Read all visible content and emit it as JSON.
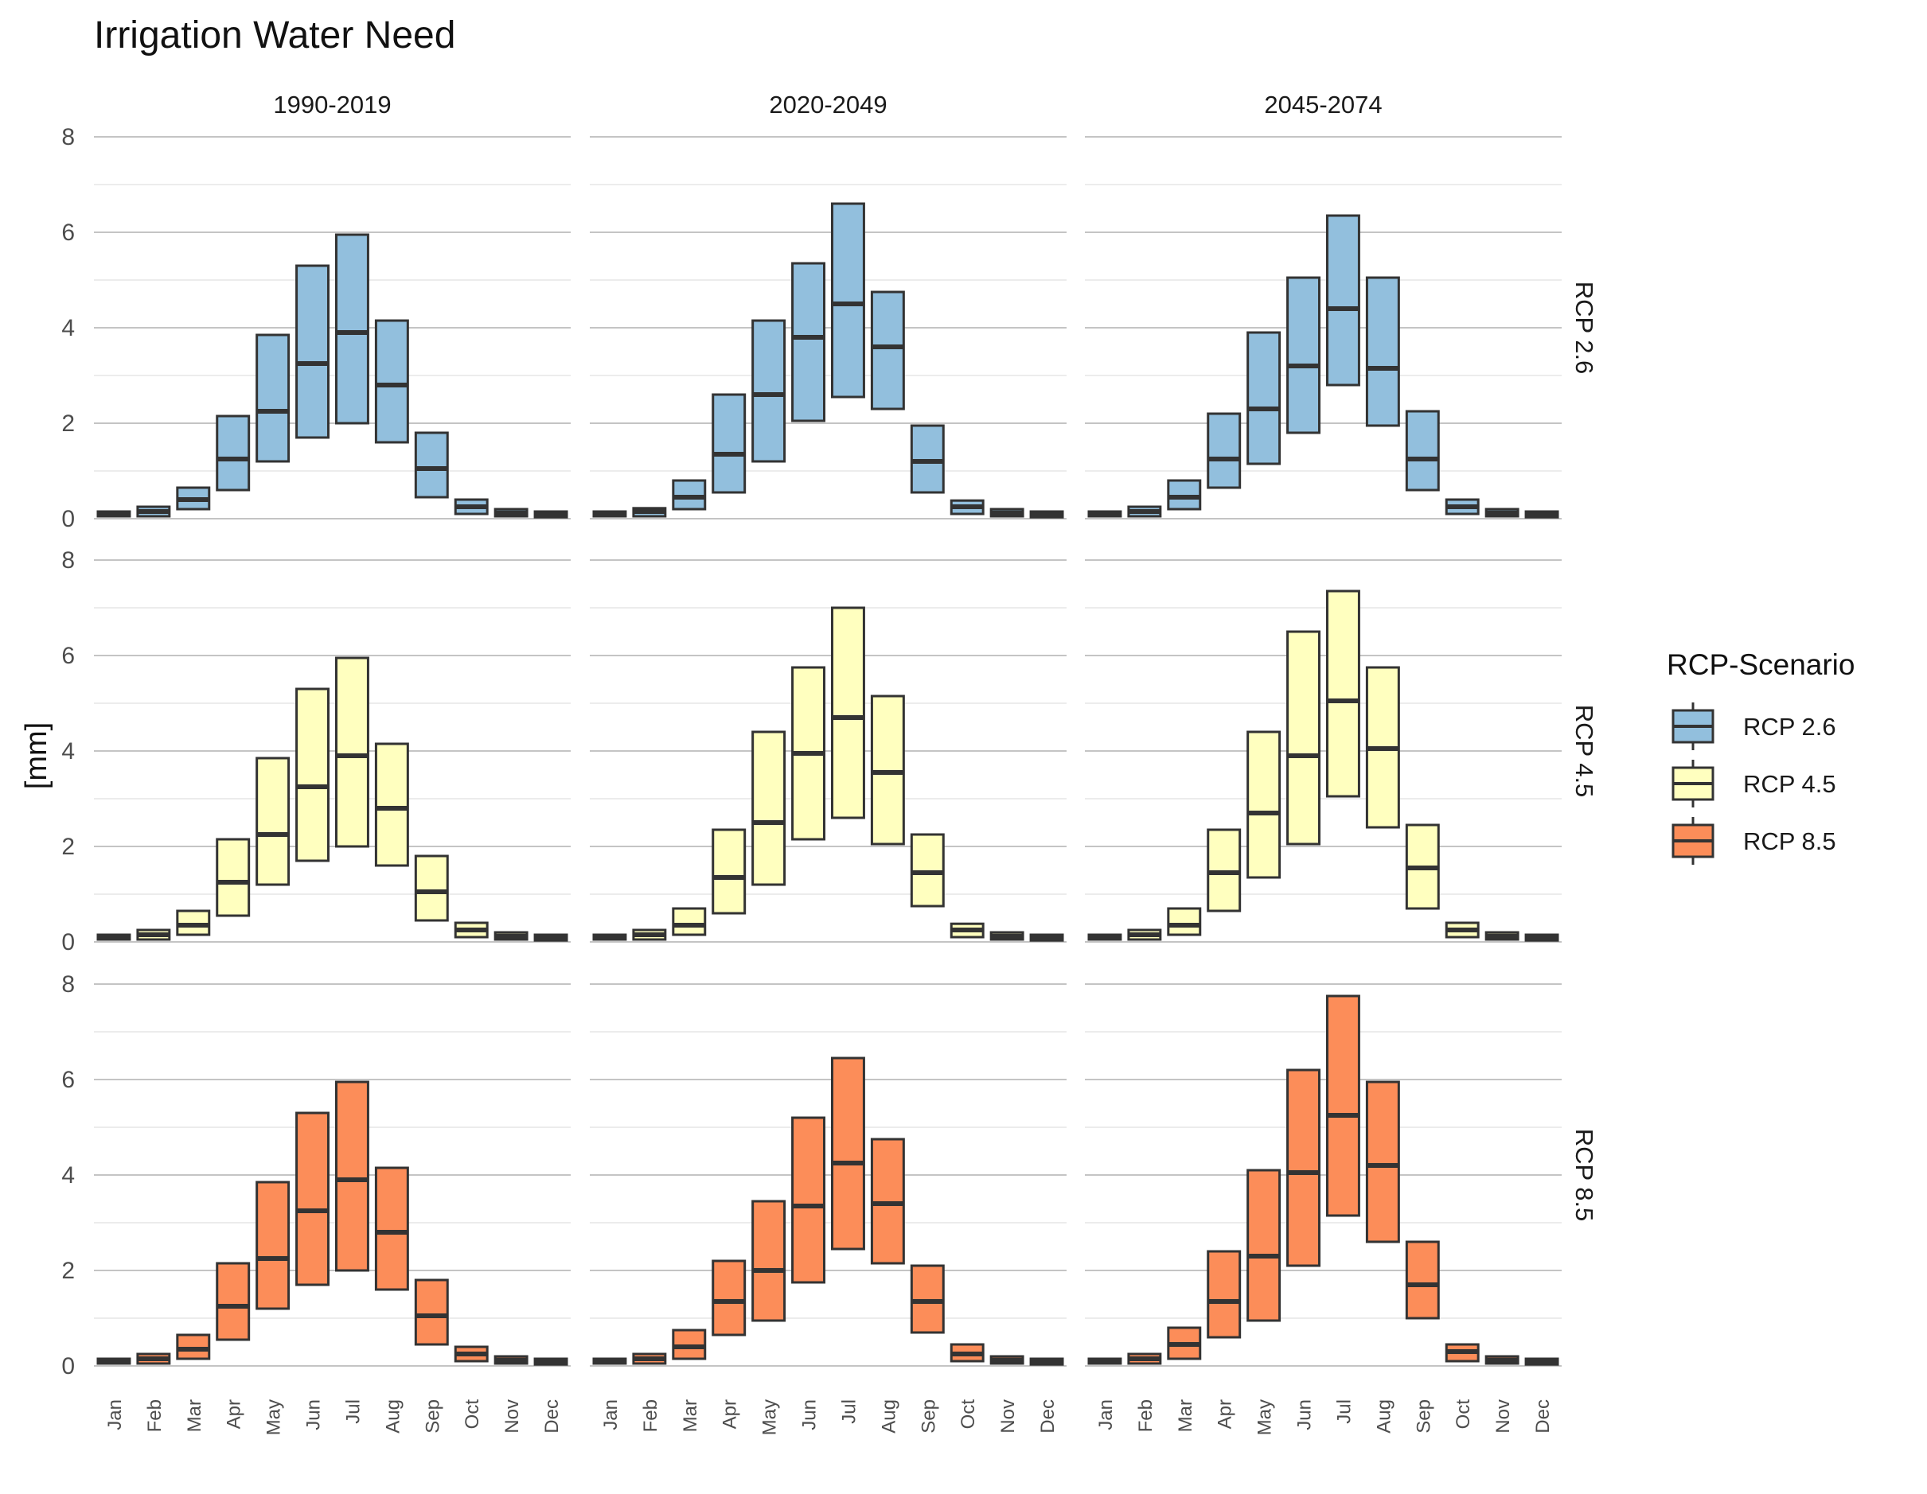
{
  "chart_data": {
    "type": "boxplot",
    "title": "Irrigation Water Need",
    "ylabel": "[mm]",
    "xlabel": "",
    "ylim": [
      0,
      8
    ],
    "yticks": [
      0,
      2,
      4,
      6,
      8
    ],
    "grid": true,
    "legend": {
      "title": "RCP-Scenario",
      "placement": "right",
      "items": [
        {
          "label": "RCP 2.6",
          "color": "#92bfdd"
        },
        {
          "label": "RCP 4.5",
          "color": "#ffffbf"
        },
        {
          "label": "RCP 8.5",
          "color": "#fc8d59"
        }
      ]
    },
    "categories": [
      "Jan",
      "Feb",
      "Mar",
      "Apr",
      "May",
      "Jun",
      "Jul",
      "Aug",
      "Sep",
      "Oct",
      "Nov",
      "Dec"
    ],
    "periods": [
      "1990-2019",
      "2020-2049",
      "2045-2074"
    ],
    "scenarios": [
      "RCP 2.6",
      "RCP 4.5",
      "RCP 8.5"
    ],
    "facets": [
      {
        "scenario": "RCP 2.6",
        "period": "1990-2019",
        "q1": [
          0.05,
          0.05,
          0.2,
          0.6,
          1.2,
          1.7,
          2.0,
          1.6,
          0.45,
          0.1,
          0.05,
          0.03
        ],
        "median": [
          0.1,
          0.15,
          0.4,
          1.25,
          2.25,
          3.25,
          3.9,
          2.8,
          1.05,
          0.25,
          0.12,
          0.08
        ],
        "q3": [
          0.15,
          0.25,
          0.65,
          2.15,
          3.85,
          5.3,
          5.95,
          4.15,
          1.8,
          0.4,
          0.2,
          0.15
        ]
      },
      {
        "scenario": "RCP 2.6",
        "period": "2020-2049",
        "q1": [
          0.05,
          0.05,
          0.2,
          0.55,
          1.2,
          2.05,
          2.55,
          2.3,
          0.55,
          0.1,
          0.05,
          0.03
        ],
        "median": [
          0.1,
          0.15,
          0.45,
          1.35,
          2.6,
          3.8,
          4.5,
          3.6,
          1.2,
          0.25,
          0.12,
          0.08
        ],
        "q3": [
          0.15,
          0.22,
          0.8,
          2.6,
          4.15,
          5.35,
          6.6,
          4.75,
          1.95,
          0.38,
          0.2,
          0.15
        ]
      },
      {
        "scenario": "RCP 2.6",
        "period": "2045-2074",
        "q1": [
          0.05,
          0.05,
          0.2,
          0.65,
          1.15,
          1.8,
          2.8,
          1.95,
          0.6,
          0.1,
          0.05,
          0.03
        ],
        "median": [
          0.1,
          0.15,
          0.45,
          1.25,
          2.3,
          3.2,
          4.4,
          3.15,
          1.25,
          0.25,
          0.12,
          0.08
        ],
        "q3": [
          0.15,
          0.25,
          0.8,
          2.2,
          3.9,
          5.05,
          6.35,
          5.05,
          2.25,
          0.4,
          0.2,
          0.15
        ]
      },
      {
        "scenario": "RCP 4.5",
        "period": "1990-2019",
        "q1": [
          0.05,
          0.05,
          0.15,
          0.55,
          1.2,
          1.7,
          2.0,
          1.6,
          0.45,
          0.1,
          0.05,
          0.03
        ],
        "median": [
          0.1,
          0.15,
          0.35,
          1.25,
          2.25,
          3.25,
          3.9,
          2.8,
          1.05,
          0.25,
          0.12,
          0.08
        ],
        "q3": [
          0.15,
          0.25,
          0.65,
          2.15,
          3.85,
          5.3,
          5.95,
          4.15,
          1.8,
          0.4,
          0.2,
          0.15
        ]
      },
      {
        "scenario": "RCP 4.5",
        "period": "2020-2049",
        "q1": [
          0.05,
          0.05,
          0.15,
          0.6,
          1.2,
          2.15,
          2.6,
          2.05,
          0.75,
          0.1,
          0.05,
          0.03
        ],
        "median": [
          0.1,
          0.15,
          0.35,
          1.35,
          2.5,
          3.95,
          4.7,
          3.55,
          1.45,
          0.25,
          0.12,
          0.08
        ],
        "q3": [
          0.15,
          0.25,
          0.7,
          2.35,
          4.4,
          5.75,
          7.0,
          5.15,
          2.25,
          0.38,
          0.2,
          0.15
        ]
      },
      {
        "scenario": "RCP 4.5",
        "period": "2045-2074",
        "q1": [
          0.05,
          0.05,
          0.15,
          0.65,
          1.35,
          2.05,
          3.05,
          2.4,
          0.7,
          0.1,
          0.05,
          0.03
        ],
        "median": [
          0.1,
          0.15,
          0.35,
          1.45,
          2.7,
          3.9,
          5.05,
          4.05,
          1.55,
          0.25,
          0.12,
          0.08
        ],
        "q3": [
          0.15,
          0.25,
          0.7,
          2.35,
          4.4,
          6.5,
          7.35,
          5.75,
          2.45,
          0.4,
          0.2,
          0.15
        ]
      },
      {
        "scenario": "RCP 8.5",
        "period": "1990-2019",
        "q1": [
          0.05,
          0.05,
          0.15,
          0.55,
          1.2,
          1.7,
          2.0,
          1.6,
          0.45,
          0.1,
          0.05,
          0.03
        ],
        "median": [
          0.1,
          0.15,
          0.35,
          1.25,
          2.25,
          3.25,
          3.9,
          2.8,
          1.05,
          0.25,
          0.12,
          0.08
        ],
        "q3": [
          0.15,
          0.25,
          0.65,
          2.15,
          3.85,
          5.3,
          5.95,
          4.15,
          1.8,
          0.4,
          0.2,
          0.15
        ]
      },
      {
        "scenario": "RCP 8.5",
        "period": "2020-2049",
        "q1": [
          0.05,
          0.05,
          0.15,
          0.65,
          0.95,
          1.75,
          2.45,
          2.15,
          0.7,
          0.1,
          0.05,
          0.03
        ],
        "median": [
          0.1,
          0.15,
          0.4,
          1.35,
          2.0,
          3.35,
          4.25,
          3.4,
          1.35,
          0.25,
          0.12,
          0.08
        ],
        "q3": [
          0.15,
          0.25,
          0.75,
          2.2,
          3.45,
          5.2,
          6.45,
          4.75,
          2.1,
          0.45,
          0.2,
          0.15
        ]
      },
      {
        "scenario": "RCP 8.5",
        "period": "2045-2074",
        "q1": [
          0.05,
          0.05,
          0.15,
          0.6,
          0.95,
          2.1,
          3.15,
          2.6,
          1.0,
          0.1,
          0.05,
          0.03
        ],
        "median": [
          0.1,
          0.15,
          0.45,
          1.35,
          2.3,
          4.05,
          5.25,
          4.2,
          1.7,
          0.3,
          0.12,
          0.08
        ],
        "q3": [
          0.15,
          0.25,
          0.8,
          2.4,
          4.1,
          6.2,
          7.75,
          5.95,
          2.6,
          0.45,
          0.2,
          0.15
        ]
      }
    ]
  }
}
